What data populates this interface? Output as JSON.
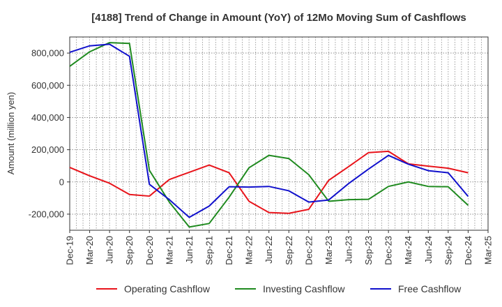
{
  "chart_data": {
    "type": "line",
    "title": "[4188]  Trend of Change in Amount (YoY) of 12Mo Moving Sum of Cashflows",
    "xlabel": "",
    "ylabel": "Amount (million yen)",
    "ylim": [
      -300000,
      900000
    ],
    "yticks": [
      -200000,
      0,
      200000,
      400000,
      600000,
      800000
    ],
    "ytick_labels": [
      "-200,000",
      "0",
      "200,000",
      "400,000",
      "600,000",
      "800,000"
    ],
    "x": [
      "Dec-19",
      "Mar-20",
      "Jun-20",
      "Sep-20",
      "Dec-20",
      "Mar-21",
      "Jun-21",
      "Sep-21",
      "Dec-21",
      "Mar-22",
      "Jun-22",
      "Sep-22",
      "Dec-22",
      "Mar-23",
      "Jun-23",
      "Sep-23",
      "Dec-23",
      "Mar-24",
      "Jun-24",
      "Sep-24",
      "Dec-24",
      "Mar-25"
    ],
    "grid": true,
    "legend_position": "bottom",
    "series": [
      {
        "name": "Operating Cashflow",
        "color": "#e8141b",
        "values": [
          90000,
          38000,
          -8000,
          -78000,
          -88000,
          15000,
          60000,
          105000,
          57000,
          -120000,
          -190000,
          -195000,
          -170000,
          10000,
          95000,
          182000,
          190000,
          112000,
          98000,
          85000,
          57000,
          null
        ]
      },
      {
        "name": "Investing Cashflow",
        "color": "#1f8a1f",
        "values": [
          718000,
          808000,
          865000,
          860000,
          72000,
          -125000,
          -280000,
          -258000,
          -95000,
          88000,
          165000,
          145000,
          45000,
          -120000,
          -110000,
          -108000,
          -28000,
          0,
          -28000,
          -30000,
          -145000,
          null
        ]
      },
      {
        "name": "Free Cashflow",
        "color": "#1010cc",
        "values": [
          805000,
          845000,
          855000,
          780000,
          -15000,
          -110000,
          -220000,
          -150000,
          -30000,
          -32000,
          -28000,
          -55000,
          -125000,
          -112000,
          -10000,
          80000,
          165000,
          110000,
          70000,
          57000,
          -90000,
          null
        ]
      }
    ]
  }
}
